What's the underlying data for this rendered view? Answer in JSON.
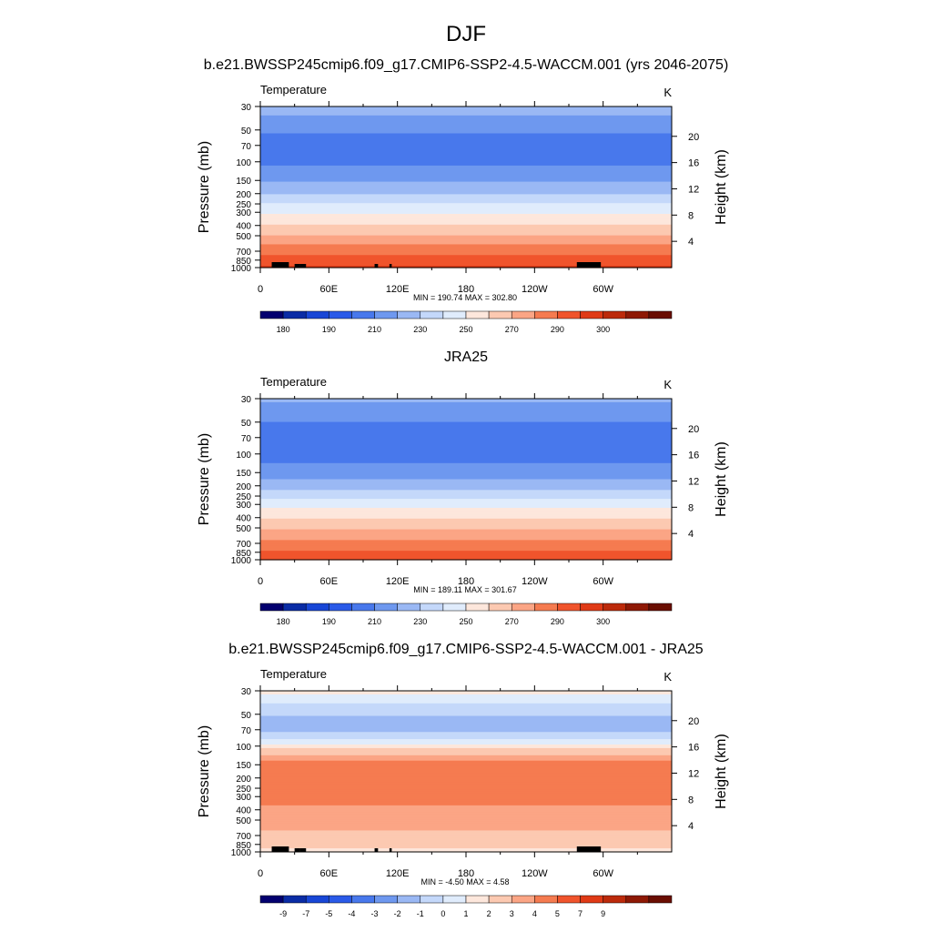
{
  "figure": {
    "title": "DJF",
    "colors": {
      "temperature_levels": [
        "#03006f",
        "#0a2ca5",
        "#1846d6",
        "#2a5ae8",
        "#4878ec",
        "#6e98ef",
        "#9ab8f4",
        "#c4d8fa",
        "#e0ecfc",
        "#fde7dc",
        "#fcc9b1",
        "#fba585",
        "#f57b50",
        "#f0542c",
        "#e03a16",
        "#bc2a0b",
        "#8e1905",
        "#6a0e02"
      ],
      "difference_levels": [
        "#03006f",
        "#0a2ca5",
        "#1846d6",
        "#2a5ae8",
        "#4878ec",
        "#6e98ef",
        "#9ab8f4",
        "#c4d8fa",
        "#e0ecfc",
        "#fde7dc",
        "#fcc9b1",
        "#fba585",
        "#f57b50",
        "#f0542c",
        "#e03a16",
        "#bc2a0b",
        "#8e1905",
        "#6a0e02"
      ],
      "topography": "#000000"
    }
  },
  "chart_data": [
    {
      "type": "heatmap",
      "title": "b.e21.BWSSP245cmip6.f09_g17.CMIP6-SSP2-4.5-WACCM.001 (yrs 2046-2075)",
      "left_label": "Temperature",
      "units": "K",
      "ylabel": "Pressure (mb)",
      "ylabel_right": "Height (km)",
      "pressure_ticks": [
        30,
        50,
        70,
        100,
        150,
        200,
        250,
        300,
        400,
        500,
        700,
        850,
        1000
      ],
      "height_ticks": [
        20,
        16,
        12,
        8,
        4
      ],
      "lon_ticks": [
        "0",
        "60E",
        "120E",
        "180",
        "120W",
        "60W"
      ],
      "stats": "MIN = 190.74  MAX = 302.80",
      "colorbar_labels": [
        "180",
        "190",
        "210",
        "230",
        "250",
        "270",
        "290",
        "300"
      ],
      "levels": [
        175,
        180,
        185,
        190,
        200,
        210,
        220,
        230,
        240,
        250,
        260,
        270,
        280,
        290,
        295,
        300,
        305
      ],
      "profile": [
        [
          30,
          215
        ],
        [
          40,
          208
        ],
        [
          50,
          201
        ],
        [
          70,
          197
        ],
        [
          100,
          198
        ],
        [
          150,
          209
        ],
        [
          200,
          220
        ],
        [
          250,
          230
        ],
        [
          300,
          238
        ],
        [
          400,
          251
        ],
        [
          500,
          261
        ],
        [
          700,
          276
        ],
        [
          850,
          284
        ],
        [
          1000,
          291
        ]
      ],
      "topography_lon": [
        [
          10,
          25
        ],
        [
          30,
          35
        ],
        [
          35,
          40
        ],
        [
          100,
          103
        ],
        [
          113,
          115
        ],
        [
          277,
          298
        ]
      ],
      "range": [
        190.74,
        302.8
      ]
    },
    {
      "type": "heatmap",
      "title": "JRA25",
      "left_label": "Temperature",
      "units": "K",
      "ylabel": "Pressure (mb)",
      "ylabel_right": "Height (km)",
      "pressure_ticks": [
        30,
        50,
        70,
        100,
        150,
        200,
        250,
        300,
        400,
        500,
        700,
        850,
        1000
      ],
      "height_ticks": [
        20,
        16,
        12,
        8,
        4
      ],
      "lon_ticks": [
        "0",
        "60E",
        "120E",
        "180",
        "120W",
        "60W"
      ],
      "stats": "MIN = 189.11  MAX = 301.67",
      "colorbar_labels": [
        "180",
        "190",
        "210",
        "230",
        "250",
        "270",
        "290",
        "300"
      ],
      "levels": [
        175,
        180,
        185,
        190,
        200,
        210,
        220,
        230,
        240,
        250,
        260,
        270,
        280,
        290,
        295,
        300,
        305
      ],
      "profile": [
        [
          30,
          212
        ],
        [
          40,
          206
        ],
        [
          50,
          200
        ],
        [
          70,
          196
        ],
        [
          100,
          195
        ],
        [
          150,
          205
        ],
        [
          200,
          216
        ],
        [
          250,
          226
        ],
        [
          300,
          236
        ],
        [
          400,
          249
        ],
        [
          500,
          259
        ],
        [
          700,
          274
        ],
        [
          850,
          282
        ],
        [
          1000,
          290
        ]
      ],
      "topography_lon": [],
      "range": [
        189.11,
        301.67
      ]
    },
    {
      "type": "heatmap",
      "title": "b.e21.BWSSP245cmip6.f09_g17.CMIP6-SSP2-4.5-WACCM.001 - JRA25",
      "left_label": "Temperature",
      "units": "K",
      "ylabel": "Pressure (mb)",
      "ylabel_right": "Height (km)",
      "pressure_ticks": [
        30,
        50,
        70,
        100,
        150,
        200,
        250,
        300,
        400,
        500,
        700,
        850,
        1000
      ],
      "height_ticks": [
        20,
        16,
        12,
        8,
        4
      ],
      "lon_ticks": [
        "0",
        "60E",
        "120E",
        "180",
        "120W",
        "60W"
      ],
      "stats": "MIN =  -4.50  MAX =   4.58",
      "colorbar_labels": [
        "-9",
        "-7",
        "-5",
        "-4",
        "-3",
        "-2",
        "-1",
        "0",
        "1",
        "2",
        "3",
        "4",
        "5",
        "7",
        "9"
      ],
      "levels": [
        -11,
        -9,
        -7,
        -5,
        -4,
        -3,
        -2,
        -1,
        0,
        1,
        2,
        3,
        4,
        5,
        7,
        9,
        11
      ],
      "profile": [
        [
          30,
          0.5
        ],
        [
          40,
          -1.2
        ],
        [
          50,
          -1.8
        ],
        [
          60,
          -2.6
        ],
        [
          70,
          -2.4
        ],
        [
          85,
          -1.0
        ],
        [
          100,
          0.5
        ],
        [
          120,
          2.0
        ],
        [
          150,
          3.5
        ],
        [
          200,
          3.6
        ],
        [
          300,
          3.5
        ],
        [
          400,
          2.8
        ],
        [
          500,
          2.4
        ],
        [
          700,
          1.8
        ],
        [
          850,
          1.3
        ],
        [
          1000,
          0.8
        ]
      ],
      "topography_lon": [
        [
          10,
          25
        ],
        [
          30,
          35
        ],
        [
          35,
          40
        ],
        [
          100,
          103
        ],
        [
          113,
          115
        ],
        [
          277,
          298
        ]
      ],
      "range": [
        -4.5,
        4.58
      ]
    }
  ]
}
